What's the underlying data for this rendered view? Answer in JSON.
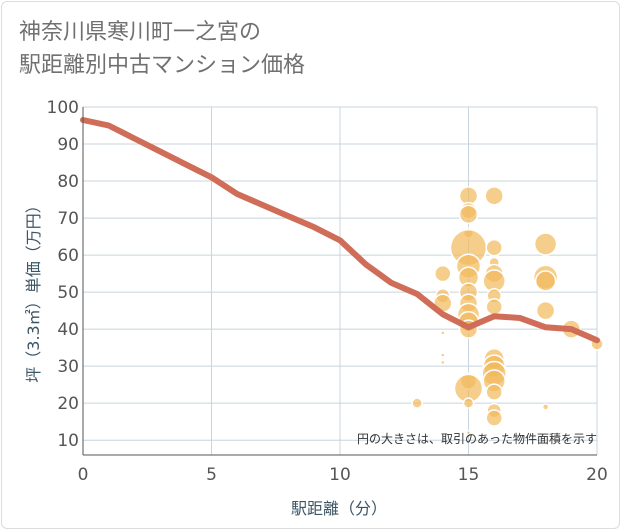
{
  "chart_data": {
    "type": "scatter",
    "title_lines": [
      "神奈川県寒川町一之宮の",
      "駅距離別中古マンション価格"
    ],
    "xlabel": "駅距離（分）",
    "ylabel": "坪（3.3㎡）単価（万円）",
    "xlim": [
      0,
      20
    ],
    "ylim": [
      6,
      100
    ],
    "xticks": [
      0,
      5,
      10,
      15,
      20
    ],
    "yticks": [
      10,
      20,
      30,
      40,
      50,
      60,
      70,
      80,
      90,
      100
    ],
    "note": "円の大きさは、取引のあった物件面積を示す",
    "grid": true,
    "colors": {
      "line": "#d06d58",
      "bubble": "#f2b95b",
      "bubble_edge": "#ffffff",
      "grid": "#c8d4de",
      "axis": "#555555"
    },
    "line": {
      "x": [
        0,
        1,
        2,
        3,
        4,
        5,
        6,
        7,
        8,
        9,
        10,
        11,
        12,
        13,
        14,
        15,
        16,
        17,
        18,
        19,
        20
      ],
      "y": [
        96.5,
        95,
        91.5,
        88,
        84.5,
        81,
        76.5,
        73.5,
        70.5,
        67.5,
        64,
        57.5,
        52.5,
        49.5,
        44,
        40.5,
        43.5,
        43,
        40.5,
        40,
        37
      ]
    },
    "bubbles": [
      {
        "x": 13,
        "y": 20,
        "s": 5
      },
      {
        "x": 14,
        "y": 55,
        "s": 8
      },
      {
        "x": 14,
        "y": 49,
        "s": 7
      },
      {
        "x": 14,
        "y": 47,
        "s": 9
      },
      {
        "x": 14,
        "y": 39,
        "s": 2
      },
      {
        "x": 14,
        "y": 33,
        "s": 2
      },
      {
        "x": 14,
        "y": 31,
        "s": 2
      },
      {
        "x": 15,
        "y": 76,
        "s": 9
      },
      {
        "x": 15,
        "y": 72,
        "s": 8
      },
      {
        "x": 15,
        "y": 71,
        "s": 9
      },
      {
        "x": 15,
        "y": 66,
        "s": 5
      },
      {
        "x": 15,
        "y": 62,
        "s": 18
      },
      {
        "x": 15,
        "y": 57,
        "s": 12
      },
      {
        "x": 15,
        "y": 54,
        "s": 10
      },
      {
        "x": 15,
        "y": 50,
        "s": 9
      },
      {
        "x": 15,
        "y": 47,
        "s": 9
      },
      {
        "x": 15,
        "y": 44,
        "s": 11
      },
      {
        "x": 15,
        "y": 42,
        "s": 10
      },
      {
        "x": 15,
        "y": 40,
        "s": 9
      },
      {
        "x": 15,
        "y": 26,
        "s": 8
      },
      {
        "x": 15,
        "y": 24,
        "s": 14
      },
      {
        "x": 15,
        "y": 20,
        "s": 5
      },
      {
        "x": 15,
        "y": 12,
        "s": 2
      },
      {
        "x": 16,
        "y": 76,
        "s": 9
      },
      {
        "x": 16,
        "y": 62,
        "s": 8
      },
      {
        "x": 16,
        "y": 58,
        "s": 5
      },
      {
        "x": 16,
        "y": 55,
        "s": 9
      },
      {
        "x": 16,
        "y": 53,
        "s": 11
      },
      {
        "x": 16,
        "y": 49,
        "s": 7
      },
      {
        "x": 16,
        "y": 46,
        "s": 8
      },
      {
        "x": 16,
        "y": 32,
        "s": 10
      },
      {
        "x": 16,
        "y": 30,
        "s": 11
      },
      {
        "x": 16,
        "y": 28,
        "s": 12
      },
      {
        "x": 16,
        "y": 26,
        "s": 11
      },
      {
        "x": 16,
        "y": 23,
        "s": 8
      },
      {
        "x": 16,
        "y": 18,
        "s": 7
      },
      {
        "x": 16,
        "y": 16,
        "s": 8
      },
      {
        "x": 18,
        "y": 63,
        "s": 11
      },
      {
        "x": 18,
        "y": 54,
        "s": 12
      },
      {
        "x": 18,
        "y": 53,
        "s": 10
      },
      {
        "x": 18,
        "y": 45,
        "s": 9
      },
      {
        "x": 18,
        "y": 19,
        "s": 3
      },
      {
        "x": 19,
        "y": 40,
        "s": 9
      },
      {
        "x": 20,
        "y": 36,
        "s": 6
      }
    ]
  }
}
